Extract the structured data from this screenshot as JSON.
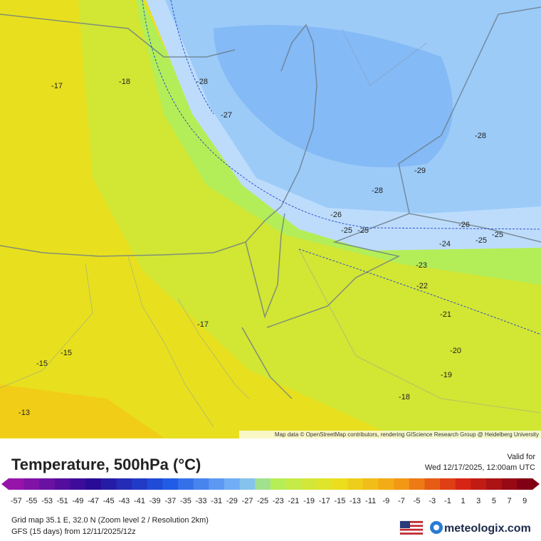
{
  "map": {
    "contour_labels": [
      "-17",
      "-18",
      "-28",
      "-27",
      "-28",
      "-29",
      "-28",
      "-26",
      "-25",
      "-25",
      "-26",
      "-25",
      "-25",
      "-24",
      "-23",
      "-22",
      "-21",
      "-17",
      "-15",
      "-20",
      "-15",
      "-19",
      "-18",
      "-13"
    ],
    "attribution": "Map data © OpenStreetMap contributors, rendering GIScience Research Group @ Heidelberg University"
  },
  "header": {
    "title": "Temperature, 500hPa (°C)",
    "valid_label": "Valid for",
    "valid_time": "Wed 12/17/2025, 12:00am UTC"
  },
  "legend": {
    "labels": [
      "-57",
      "-55",
      "-53",
      "-51",
      "-49",
      "-47",
      "-45",
      "-43",
      "-41",
      "-39",
      "-37",
      "-35",
      "-33",
      "-31",
      "-29",
      "-27",
      "-25",
      "-23",
      "-21",
      "-19",
      "-17",
      "-15",
      "-13",
      "-11",
      "-9",
      "-7",
      "-5",
      "-3",
      "-1",
      "1",
      "3",
      "5",
      "7",
      "9"
    ]
  },
  "footer": {
    "grid_info": "Grid map 35.1 E, 32.0 N (Zoom level 2 / Resolution 2km)",
    "model_info": "GFS (15 days) from  12/11/2025/12z",
    "brand": "meteologix.com"
  }
}
